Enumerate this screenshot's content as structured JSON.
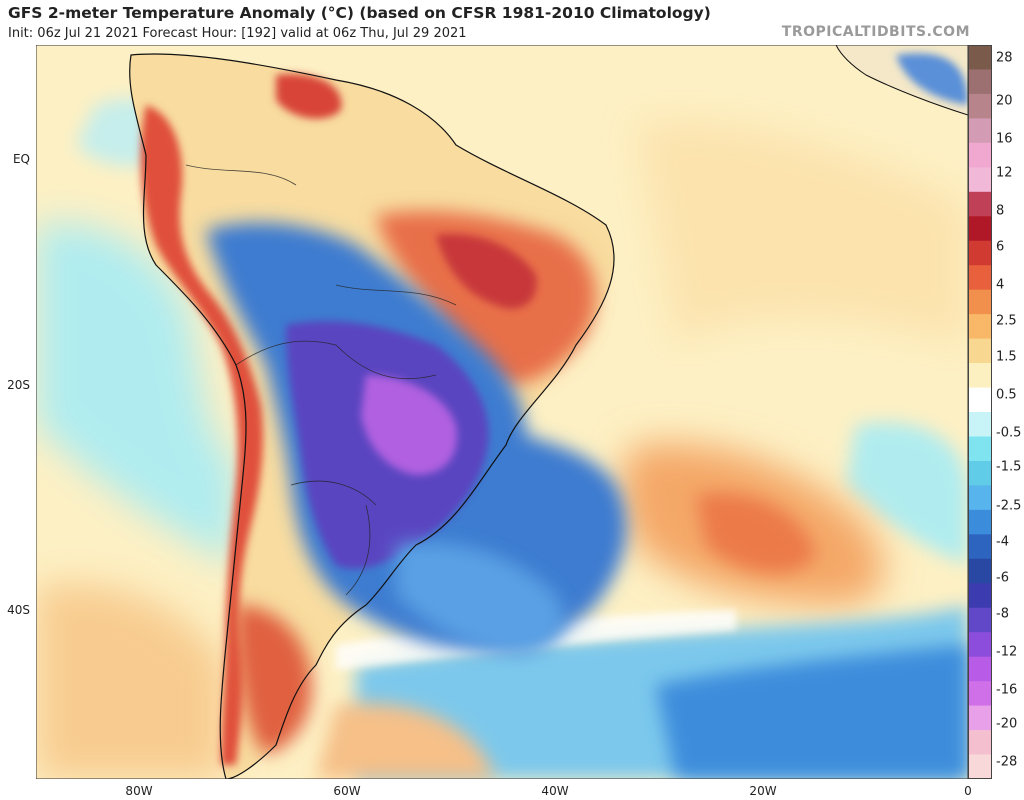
{
  "header": {
    "title": "GFS 2-meter Temperature Anomaly (°C) (based on CFSR 1981-2010 Climatology)",
    "subtitle": "Init: 06z Jul 21 2021   Forecast Hour: [192]   valid at 06z Thu, Jul 29 2021",
    "brand": "TROPICALTIDBITS.COM"
  },
  "axes": {
    "lat_labels": [
      "EQ",
      "20S",
      "40S"
    ],
    "lon_labels": [
      "80W",
      "60W",
      "40W",
      "20W",
      "0"
    ]
  },
  "colorbar": {
    "labels": [
      "28",
      "20",
      "16",
      "12",
      "8",
      "6",
      "4",
      "2.5",
      "1.5",
      "0.5",
      "-0.5",
      "-1.5",
      "-2.5",
      "-4",
      "-6",
      "-8",
      "-12",
      "-16",
      "-20",
      "-28"
    ],
    "colors": [
      "#7a5a4a",
      "#9c7070",
      "#b8848c",
      "#d49cb4",
      "#f0a8d0",
      "#f2b8d8",
      "#c04058",
      "#b01828",
      "#d03a30",
      "#e8603c",
      "#f0904c",
      "#f8b868",
      "#f8d890",
      "#fcf0c0",
      "#ffffff",
      "#c8f4f8",
      "#80e4f0",
      "#60cce8",
      "#58b4ec",
      "#3c8cdc",
      "#2c64c0",
      "#2848a4",
      "#3c3cb0",
      "#6048c8",
      "#8c4cdc",
      "#b85ce8",
      "#d070e8",
      "#e8a0e8",
      "#f4c0d0",
      "#f8d8d8"
    ],
    "units": "°C"
  },
  "map": {
    "region": "South America and South Atlantic",
    "ocean_color": "#fdf0c4",
    "land_border_color": "#111111"
  }
}
